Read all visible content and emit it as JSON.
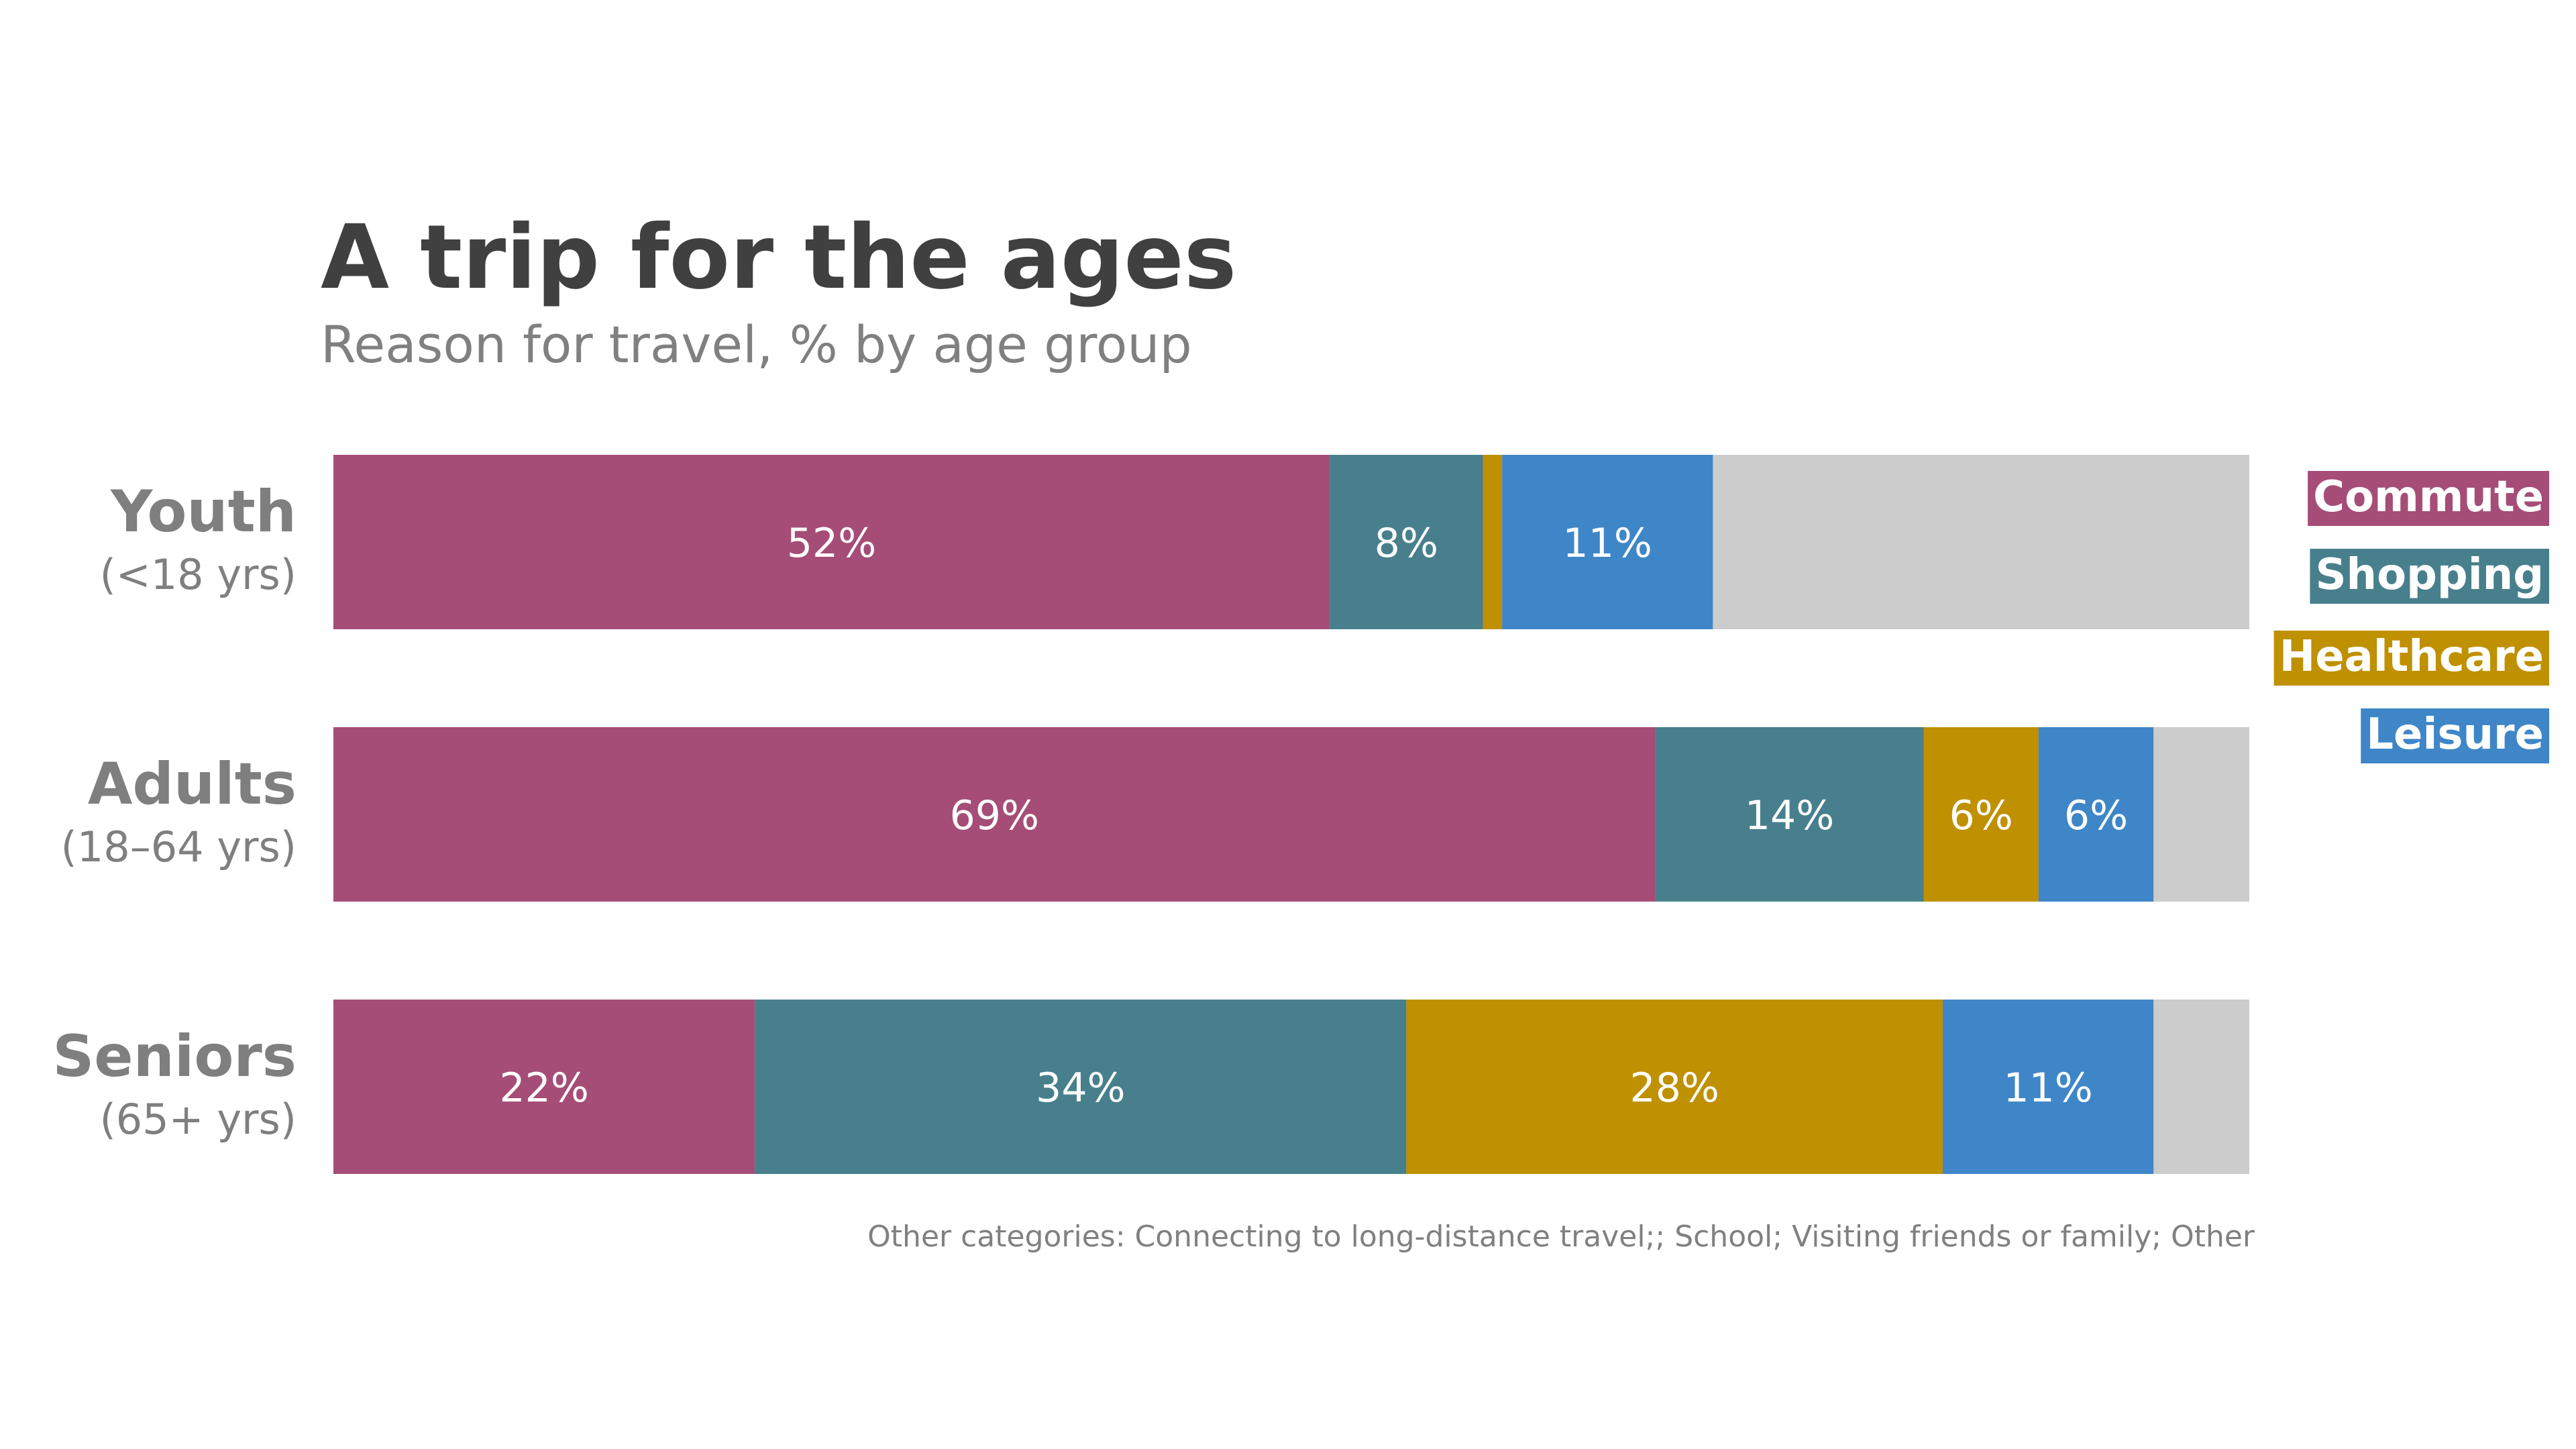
{
  "chart_data": {
    "type": "bar",
    "orientation": "horizontal",
    "stacked": true,
    "title": "A trip for the ages",
    "subtitle": "Reason for travel, % by age group",
    "categories": [
      {
        "name": "Youth",
        "sub": "(<18 yrs)"
      },
      {
        "name": "Adults",
        "sub": "(18–64 yrs)"
      },
      {
        "name": "Seniors",
        "sub": "(65+ yrs)"
      }
    ],
    "series": [
      {
        "name": "Commute",
        "color": "#a54d77",
        "values": [
          52,
          69,
          22
        ],
        "labels": [
          "52%",
          "69%",
          "22%"
        ]
      },
      {
        "name": "Shopping",
        "color": "#47808c",
        "values": [
          8,
          14,
          34
        ],
        "labels": [
          "8%",
          "14%",
          "34%"
        ]
      },
      {
        "name": "Healthcare",
        "color": "#bf9000",
        "values": [
          1,
          6,
          28
        ],
        "labels": [
          "",
          "6%",
          "28%"
        ]
      },
      {
        "name": "Leisure",
        "color": "#3f86c8",
        "values": [
          11,
          6,
          11
        ],
        "labels": [
          "11%",
          "6%",
          "11%"
        ]
      }
    ],
    "other": {
      "color": "#cccccc"
    },
    "xlim": [
      0,
      100
    ],
    "grid": false,
    "legend_position": "right",
    "footnote": "Other categories: Connecting to long-distance travel;; School; Visiting friends or family; Other"
  }
}
